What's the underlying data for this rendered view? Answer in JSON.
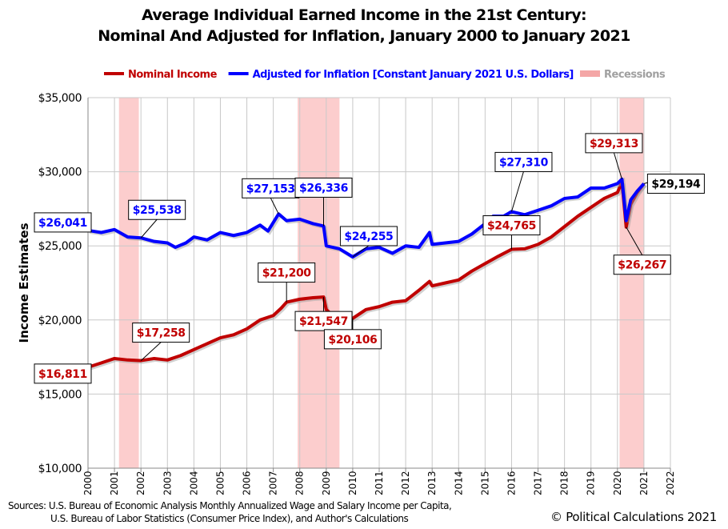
{
  "chart_data": {
    "type": "line",
    "title": [
      "Average Individual Earned Income in the 21st Century:",
      "Nominal And Adjusted for Inflation, January 2000 to January 2021"
    ],
    "ylabel": "Income Estimates",
    "xlabel": "",
    "xlim": [
      2000,
      2022
    ],
    "ylim": [
      10000,
      35000
    ],
    "xticks": [
      "2000",
      "2001",
      "2002",
      "2003",
      "2004",
      "2005",
      "2006",
      "2007",
      "2008",
      "2009",
      "2010",
      "2011",
      "2012",
      "2013",
      "2014",
      "2015",
      "2016",
      "2017",
      "2018",
      "2019",
      "2020",
      "2021",
      "2022"
    ],
    "yticks": [
      "$10,000",
      "$15,000",
      "$20,000",
      "$25,000",
      "$30,000",
      "$35,000"
    ],
    "grid": true,
    "legend_position": "top",
    "legend": [
      {
        "label": "Nominal Income",
        "color": "#c00000"
      },
      {
        "label": "Adjusted for Inflation [Constant January 2021 U.S. Dollars]",
        "color": "#0000ff"
      },
      {
        "label": "Recessions",
        "color": "#f4a6a6"
      }
    ],
    "recessions": [
      [
        2001.17,
        2001.92
      ],
      [
        2007.92,
        2009.5
      ],
      [
        2020.08,
        2021.0
      ]
    ],
    "series": [
      {
        "name": "Nominal Income",
        "color": "#c00000",
        "x": [
          2000,
          2000.5,
          2001,
          2001.5,
          2002,
          2002.5,
          2003,
          2003.5,
          2004,
          2004.5,
          2005,
          2005.5,
          2006,
          2006.5,
          2007,
          2007.3,
          2007.5,
          2008,
          2008.5,
          2008.9,
          2009,
          2009.3,
          2009.6,
          2010,
          2010.5,
          2011,
          2011.5,
          2012,
          2012.5,
          2012.9,
          2013,
          2013.5,
          2014,
          2014.5,
          2015,
          2015.5,
          2016,
          2016.5,
          2017,
          2017.5,
          2018,
          2018.5,
          2019,
          2019.5,
          2020,
          2020.17,
          2020.33,
          2020.5,
          2020.75,
          2021
        ],
        "y": [
          16811,
          17100,
          17400,
          17300,
          17258,
          17400,
          17300,
          17600,
          18000,
          18400,
          18800,
          19000,
          19400,
          20000,
          20300,
          20800,
          21200,
          21400,
          21500,
          21547,
          20700,
          20200,
          20300,
          20106,
          20700,
          20900,
          21200,
          21300,
          22000,
          22600,
          22300,
          22500,
          22700,
          23300,
          23800,
          24300,
          24765,
          24800,
          25100,
          25600,
          26300,
          27000,
          27600,
          28200,
          28600,
          29313,
          26267,
          27800,
          28600,
          29194
        ]
      },
      {
        "name": "Adjusted for Inflation [Constant January 2021 U.S. Dollars]",
        "color": "#0000ff",
        "x": [
          2000,
          2000.5,
          2001,
          2001.5,
          2002,
          2002.5,
          2003,
          2003.3,
          2003.7,
          2004,
          2004.5,
          2005,
          2005.5,
          2006,
          2006.5,
          2006.8,
          2007.2,
          2007.5,
          2008,
          2008.5,
          2008.9,
          2009,
          2009.5,
          2010,
          2010.5,
          2011,
          2011.5,
          2012,
          2012.5,
          2012.9,
          2013,
          2013.5,
          2014,
          2014.5,
          2015,
          2015.3,
          2015.7,
          2016,
          2016.5,
          2017,
          2017.5,
          2018,
          2018.5,
          2019,
          2019.5,
          2020,
          2020.17,
          2020.33,
          2020.5,
          2020.75,
          2021
        ],
        "y": [
          26041,
          25900,
          26100,
          25600,
          25538,
          25300,
          25200,
          24900,
          25200,
          25600,
          25400,
          25900,
          25700,
          25900,
          26400,
          26000,
          27153,
          26700,
          26800,
          26500,
          26336,
          25000,
          24800,
          24255,
          24800,
          24900,
          24500,
          25000,
          24900,
          25900,
          25100,
          25200,
          25300,
          25800,
          26500,
          27000,
          27000,
          27310,
          27100,
          27400,
          27700,
          28200,
          28300,
          28900,
          28900,
          29200,
          29500,
          26700,
          28100,
          28700,
          29194
        ]
      }
    ],
    "annotations": [
      {
        "text": "$16,811",
        "color": "#c00000",
        "x": 2000,
        "y": 16811
      },
      {
        "text": "$17,258",
        "color": "#c00000",
        "x": 2002,
        "y": 17258
      },
      {
        "text": "$21,200",
        "color": "#c00000",
        "x": 2007.5,
        "y": 21200
      },
      {
        "text": "$21,547",
        "color": "#c00000",
        "x": 2008.9,
        "y": 21547
      },
      {
        "text": "$20,106",
        "color": "#c00000",
        "x": 2010,
        "y": 20106
      },
      {
        "text": "$24,765",
        "color": "#c00000",
        "x": 2016,
        "y": 24765
      },
      {
        "text": "$29,313",
        "color": "#c00000",
        "x": 2020.17,
        "y": 29500
      },
      {
        "text": "$26,267",
        "color": "#c00000",
        "x": 2020.33,
        "y": 26267
      },
      {
        "text": "$26,041",
        "color": "#0000ff",
        "x": 2000,
        "y": 26041
      },
      {
        "text": "$25,538",
        "color": "#0000ff",
        "x": 2002,
        "y": 25538
      },
      {
        "text": "$27,153",
        "color": "#0000ff",
        "x": 2007.2,
        "y": 27153
      },
      {
        "text": "$26,336",
        "color": "#0000ff",
        "x": 2008.9,
        "y": 26336
      },
      {
        "text": "$24,255",
        "color": "#0000ff",
        "x": 2010,
        "y": 24255
      },
      {
        "text": "$27,310",
        "color": "#0000ff",
        "x": 2016,
        "y": 27310
      },
      {
        "text": "$29,194",
        "color": "#000000",
        "x": 2021,
        "y": 29194
      }
    ]
  },
  "footer": {
    "sources_line1": "Sources: U.S. Bureau of Economic Analysis Monthly Annualized Wage and Salary Income per Capita,",
    "sources_line2": "U.S. Bureau of Labor Statistics (Consumer  Price Index), and Author's Calculations",
    "copyright": "© Political Calculations 2021"
  }
}
